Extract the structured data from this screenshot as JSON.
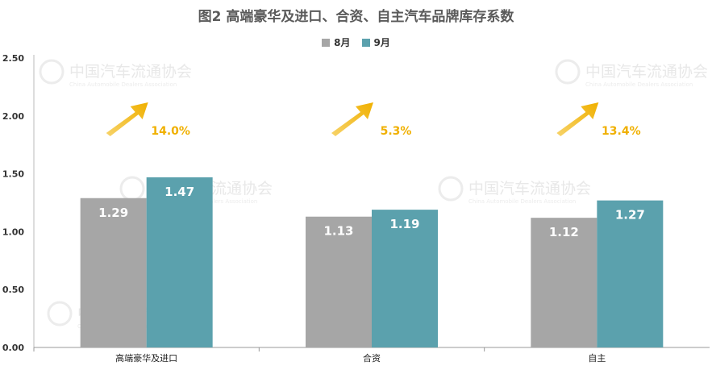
{
  "title": "图2  高端豪华及进口、合资、自主汽车品牌库存系数",
  "legend": [
    {
      "label": "8月",
      "color": "#a6a6a6"
    },
    {
      "label": "9月",
      "color": "#5ba1ad"
    }
  ],
  "watermark": {
    "cn": "中国汽车流通协会",
    "en": "China Automobile Dealers Association",
    "logo": "CADA"
  },
  "chart_data": {
    "type": "bar",
    "title": "图2  高端豪华及进口、合资、自主汽车品牌库存系数",
    "categories": [
      "高端豪华及进口",
      "合资",
      "自主"
    ],
    "series": [
      {
        "name": "8月",
        "values": [
          1.29,
          1.13,
          1.12
        ],
        "labels": [
          "1.29",
          "1.13",
          "1.12"
        ],
        "color": "#a6a6a6"
      },
      {
        "name": "9月",
        "values": [
          1.47,
          1.19,
          1.27
        ],
        "labels": [
          "1.47",
          "1.19",
          "1.27"
        ],
        "color": "#5ba1ad"
      }
    ],
    "ylim": [
      0,
      2.5
    ],
    "yticks": [
      "0.00",
      "0.50",
      "1.00",
      "1.50",
      "2.00",
      "2.50"
    ],
    "growth": [
      "14.0%",
      "5.3%",
      "13.4%"
    ],
    "growth_color": "#f0b000",
    "grid": false,
    "legend_position": "top-center",
    "xlabel": "",
    "ylabel": ""
  }
}
